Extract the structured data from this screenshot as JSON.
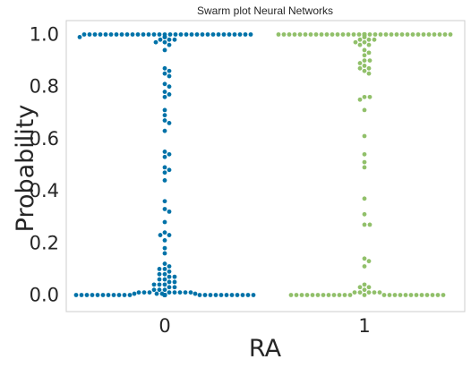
{
  "chart_data": {
    "type": "scatter",
    "subtype": "swarm",
    "title": "Swarm plot Neural Networks",
    "xlabel": "RA",
    "ylabel": "Probability",
    "categories": [
      "0",
      "1"
    ],
    "ylim": [
      -0.05,
      1.06
    ],
    "yticks": [
      0.0,
      0.2,
      0.4,
      0.6,
      0.8,
      1.0
    ],
    "ytick_labels": [
      "0.0",
      "0.2",
      "0.4",
      "0.6",
      "0.8",
      "1.0"
    ],
    "grid": false,
    "legend": "none",
    "series": [
      {
        "category": "0",
        "color": "#0072a8",
        "values": [
          1.0,
          1.0,
          1.0,
          1.0,
          1.0,
          1.0,
          1.0,
          1.0,
          1.0,
          1.0,
          1.0,
          1.0,
          1.0,
          1.0,
          1.0,
          1.0,
          1.0,
          1.0,
          1.0,
          1.0,
          1.0,
          1.0,
          1.0,
          1.0,
          1.0,
          1.0,
          1.0,
          1.0,
          1.0,
          1.0,
          1.0,
          1.0,
          0.99,
          0.99,
          0.99,
          0.99,
          0.98,
          0.98,
          0.98,
          0.97,
          0.97,
          0.96,
          0.94,
          0.87,
          0.86,
          0.85,
          0.84,
          0.81,
          0.8,
          0.78,
          0.77,
          0.76,
          0.71,
          0.69,
          0.67,
          0.66,
          0.63,
          0.55,
          0.54,
          0.53,
          0.49,
          0.48,
          0.47,
          0.44,
          0.36,
          0.33,
          0.32,
          0.28,
          0.24,
          0.23,
          0.23,
          0.21,
          0.18,
          0.16,
          0.12,
          0.11,
          0.1,
          0.1,
          0.09,
          0.08,
          0.08,
          0.07,
          0.07,
          0.06,
          0.06,
          0.05,
          0.05,
          0.04,
          0.04,
          0.04,
          0.03,
          0.03,
          0.02,
          0.02,
          0.02,
          0.01,
          0.01,
          0.01,
          0.01,
          0.01,
          0.01,
          0.005,
          0.005,
          0.005,
          0.005,
          0.01,
          0.01,
          0.0,
          0.0,
          0.0,
          0.0,
          0.0,
          0.0,
          0.0,
          0.0,
          0.0,
          0.0,
          0.0,
          0.0,
          0.0,
          0.0,
          0.0,
          0.0,
          0.0,
          0.0,
          0.0,
          0.0,
          0.0,
          0.0,
          0.0,
          0.0,
          0.0,
          0.0,
          0.0,
          0.0,
          0.0,
          0.0,
          0.0,
          0.0,
          0.0,
          0.0,
          0.0,
          0.0,
          0.0,
          0.0,
          0.0,
          0.0,
          0.0,
          0.0,
          0.0,
          0.0,
          0.0,
          0.0,
          0.0,
          0.0,
          0.0,
          0.0,
          0.0,
          0.0,
          0.0,
          0.0,
          0.0,
          0.0,
          0.0,
          0.0,
          0.0,
          0.0,
          0.0,
          0.0
        ]
      },
      {
        "category": "1",
        "color": "#91c06a",
        "values": [
          1.0,
          1.0,
          1.0,
          1.0,
          1.0,
          1.0,
          1.0,
          1.0,
          1.0,
          1.0,
          1.0,
          1.0,
          1.0,
          1.0,
          1.0,
          1.0,
          1.0,
          1.0,
          1.0,
          1.0,
          1.0,
          1.0,
          1.0,
          1.0,
          1.0,
          1.0,
          1.0,
          1.0,
          1.0,
          1.0,
          1.0,
          1.0,
          1.0,
          1.0,
          1.0,
          1.0,
          1.0,
          1.0,
          1.0,
          1.0,
          1.0,
          1.0,
          1.0,
          1.0,
          1.0,
          1.0,
          1.0,
          1.0,
          1.0,
          1.0,
          1.0,
          1.0,
          1.0,
          1.0,
          1.0,
          1.0,
          1.0,
          1.0,
          1.0,
          1.0,
          0.99,
          0.99,
          0.99,
          0.98,
          0.98,
          0.98,
          0.97,
          0.97,
          0.96,
          0.96,
          0.94,
          0.93,
          0.92,
          0.9,
          0.9,
          0.89,
          0.88,
          0.87,
          0.87,
          0.86,
          0.85,
          0.76,
          0.76,
          0.75,
          0.71,
          0.61,
          0.54,
          0.51,
          0.49,
          0.37,
          0.31,
          0.27,
          0.27,
          0.14,
          0.13,
          0.11,
          0.04,
          0.03,
          0.03,
          0.02,
          0.01,
          0.01,
          0.01,
          0.01,
          0.01,
          0.0,
          0.0,
          0.0,
          0.0,
          0.0,
          0.0,
          0.0,
          0.0,
          0.0,
          0.0,
          0.0,
          0.0,
          0.0,
          0.0,
          0.0,
          0.0,
          0.0,
          0.0,
          0.0,
          0.0,
          0.0,
          0.0,
          0.0,
          0.0,
          0.0
        ]
      }
    ]
  }
}
